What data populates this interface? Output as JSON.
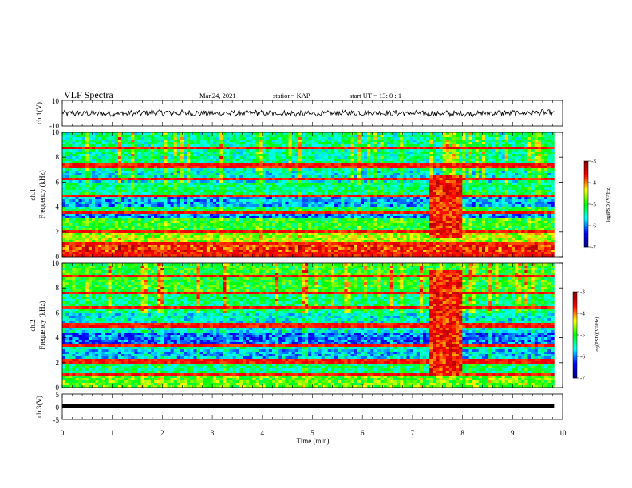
{
  "header": {
    "title": "VLF Spectra",
    "date": "Mar.24, 2021",
    "station": "station= KAP",
    "start_ut": "start  UT  =   13: 0   : 1"
  },
  "chart_data": [
    {
      "type": "line",
      "panel": "ch1-waveform",
      "ylabel": "ch.1(V)",
      "ylim": [
        -10,
        10
      ],
      "y_ticks": [
        "10",
        "-10"
      ],
      "x_range_min": [
        0,
        9.83
      ],
      "trace_level_approx": [
        0.0,
        -0.3,
        0.4,
        -0.2,
        0.1,
        -0.5,
        0.3,
        0.0,
        -0.4,
        0.2,
        0.5
      ],
      "trace_peak_to_peak_approx": 4
    },
    {
      "type": "heatmap",
      "panel": "ch1-spectrogram",
      "ylabel": "ch.1\nFrequency  (kHz)",
      "ylabel_lines": [
        "ch.1",
        "Frequency  (kHz)"
      ],
      "ylim": [
        0,
        10
      ],
      "y_ticks": [
        "10",
        "8",
        "6",
        "4",
        "2",
        "0"
      ],
      "x_range_min": [
        0,
        9.83
      ],
      "background_level_by_band": [
        {
          "khz": [
            0,
            1
          ],
          "log_psd": -3.8
        },
        {
          "khz": [
            1,
            2
          ],
          "log_psd": -4.6
        },
        {
          "khz": [
            2,
            3
          ],
          "log_psd": -5.0
        },
        {
          "khz": [
            3,
            3.5
          ],
          "log_psd": -6.0
        },
        {
          "khz": [
            3.5,
            4
          ],
          "log_psd": -5.2
        },
        {
          "khz": [
            4,
            5
          ],
          "log_psd": -5.9
        },
        {
          "khz": [
            5,
            6
          ],
          "log_psd": -5.3
        },
        {
          "khz": [
            6,
            7
          ],
          "log_psd": -5.6
        },
        {
          "khz": [
            7,
            10
          ],
          "log_psd": -5.4
        }
      ],
      "narrowband_lines_khz": [
        0.2,
        1.1,
        2.0,
        3.6,
        4.9,
        6.2,
        7.3,
        8.7
      ],
      "enhanced_interval_min": [
        7.35,
        8.0
      ],
      "enhanced_band_khz": [
        1.5,
        6.5
      ],
      "colorbar": {
        "ticks": [
          "-3",
          "-4",
          "-5",
          "-6",
          "-7"
        ],
        "range": [
          -7,
          -3
        ],
        "label": "log(PSD)(V²/Hz)"
      }
    },
    {
      "type": "heatmap",
      "panel": "ch2-spectrogram",
      "ylabel": "ch.2\nFrequency  (kHz)",
      "ylabel_lines": [
        "ch.2",
        "Frequency  (kHz)"
      ],
      "ylim": [
        0,
        10
      ],
      "y_ticks": [
        "10",
        "8",
        "6",
        "4",
        "2",
        "0"
      ],
      "x_range_min": [
        0,
        9.83
      ],
      "background_level_by_band": [
        {
          "khz": [
            0,
            1
          ],
          "log_psd": -4.8
        },
        {
          "khz": [
            1,
            2
          ],
          "log_psd": -5.3
        },
        {
          "khz": [
            2,
            3
          ],
          "log_psd": -5.8
        },
        {
          "khz": [
            3,
            3.5
          ],
          "log_psd": -5.5
        },
        {
          "khz": [
            3.5,
            4.5
          ],
          "log_psd": -6.1
        },
        {
          "khz": [
            4.5,
            6
          ],
          "log_psd": -5.6
        },
        {
          "khz": [
            6,
            7.5
          ],
          "log_psd": -5.3
        },
        {
          "khz": [
            7.5,
            10
          ],
          "log_psd": -5.0
        }
      ],
      "narrowband_lines_khz": [
        1.0,
        2.1,
        3.3,
        5.0,
        6.4,
        7.6,
        9.0
      ],
      "enhanced_interval_min": [
        7.35,
        8.0
      ],
      "enhanced_band_khz": [
        1.0,
        9.5
      ],
      "colorbar": {
        "ticks": [
          "-3",
          "-4",
          "-5",
          "-6",
          "-7"
        ],
        "range": [
          -7,
          -3
        ],
        "label": "log(PSD)(V²/Hz)"
      }
    },
    {
      "type": "line",
      "panel": "ch3-waveform",
      "ylabel": "ch.3(V)",
      "ylim": [
        -5,
        5
      ],
      "y_ticks": [
        "5",
        "0",
        "-5"
      ],
      "x_range_min": [
        0,
        9.83
      ],
      "trace_level": 0
    }
  ],
  "x_axis": {
    "label": "Time  (min)",
    "range": [
      0,
      10
    ],
    "ticks": [
      "0",
      "1",
      "2",
      "3",
      "4",
      "5",
      "6",
      "7",
      "8",
      "9",
      "10"
    ]
  },
  "colors": {
    "colormap": [
      "#000080",
      "#0000ff",
      "#00ffff",
      "#00ff00",
      "#ffff00",
      "#ff0000",
      "#800000"
    ]
  }
}
